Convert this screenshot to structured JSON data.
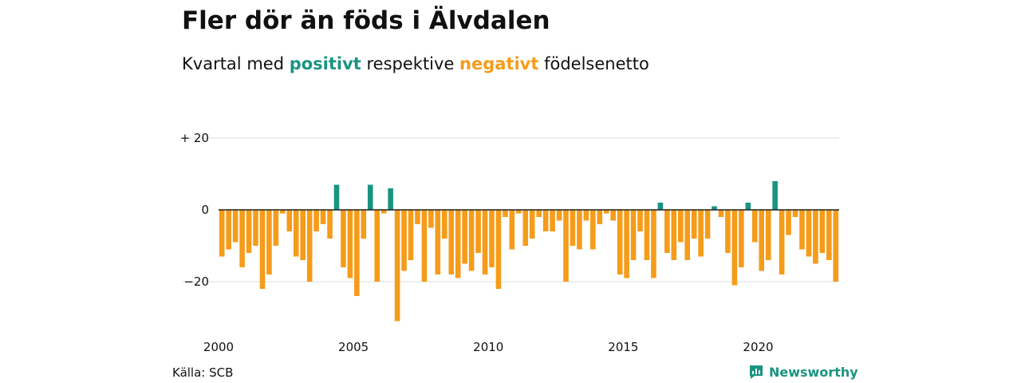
{
  "header": {
    "title": "Fler dör än föds i Älvdalen",
    "subtitle_pre": "Kvartal med ",
    "subtitle_pos": "positivt",
    "subtitle_mid": " respektive ",
    "subtitle_neg": "negativt",
    "subtitle_post": " födelsenetto"
  },
  "footer": {
    "source": "Källa: SCB",
    "brand": "Newsworthy"
  },
  "colors": {
    "positive": "#1a9481",
    "negative": "#f59c1a",
    "grid": "#dddddd",
    "zero_line": "#222222"
  },
  "chart_data": {
    "type": "bar",
    "xlabel": "",
    "ylabel": "",
    "ylim": [
      -32,
      20
    ],
    "y_ticks": [
      {
        "value": 20,
        "label": "+ 20"
      },
      {
        "value": 0,
        "label": "0"
      },
      {
        "value": -20,
        "label": "−20"
      }
    ],
    "x_ticks": [
      "2000",
      "2005",
      "2010",
      "2015",
      "2020"
    ],
    "start_year": 2000,
    "grid": true,
    "values": [
      -13,
      -11,
      -9,
      -16,
      -12,
      -10,
      -22,
      -18,
      -10,
      -1,
      -6,
      -13,
      -14,
      -20,
      -6,
      -4,
      -8,
      7,
      -16,
      -19,
      -24,
      -8,
      7,
      -20,
      -1,
      6,
      -31,
      -17,
      -14,
      -4,
      -20,
      -5,
      -18,
      -8,
      -18,
      -19,
      -15,
      -17,
      -12,
      -18,
      -16,
      -22,
      -2,
      -11,
      -1,
      -10,
      -8,
      -2,
      -6,
      -6,
      -3,
      -20,
      -10,
      -11,
      -3,
      -11,
      -4,
      -1,
      -3,
      -18,
      -19,
      -14,
      -6,
      -14,
      -19,
      2,
      -12,
      -14,
      -9,
      -14,
      -8,
      -13,
      -8,
      1,
      -2,
      -12,
      -21,
      -16,
      2,
      -9,
      -17,
      -14,
      8,
      -18,
      -7,
      -2,
      -11,
      -13,
      -15,
      -12,
      -14,
      -20
    ]
  }
}
